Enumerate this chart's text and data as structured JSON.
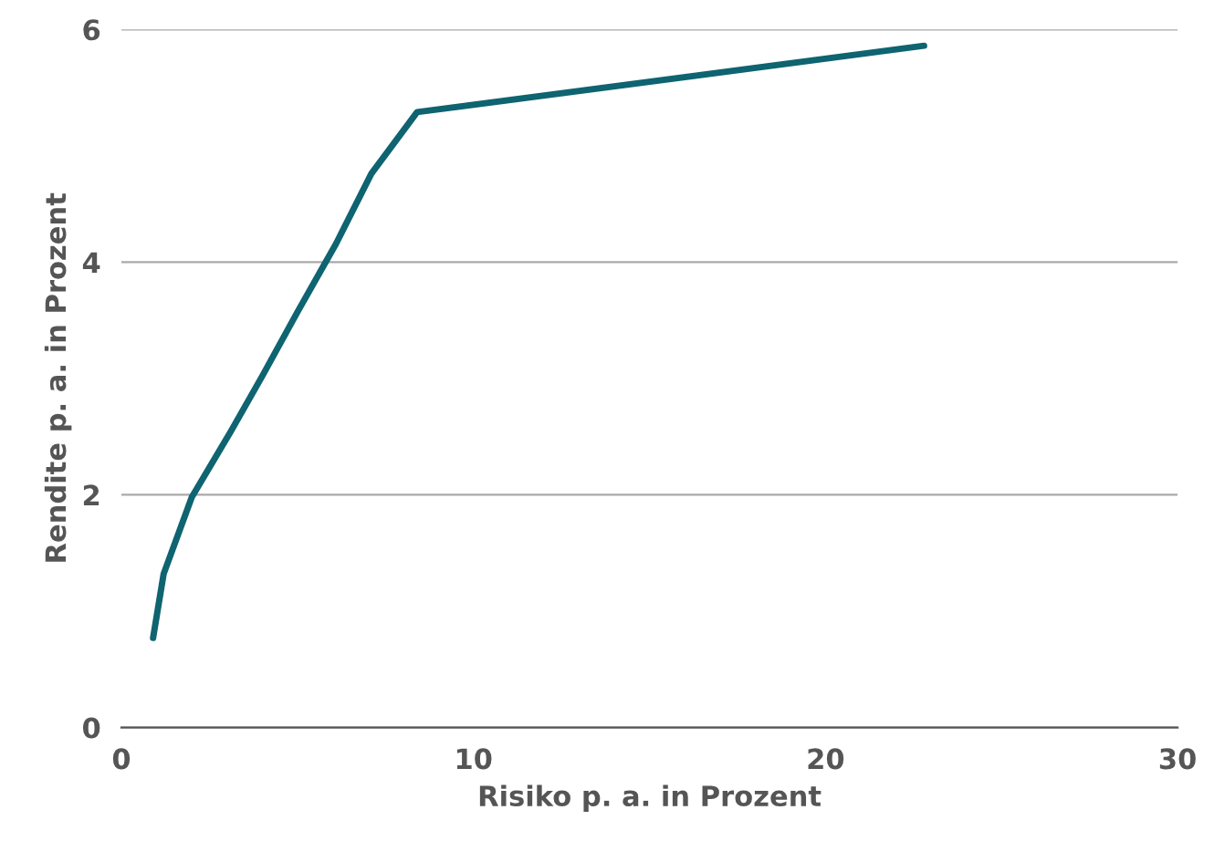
{
  "chart_data": {
    "type": "line",
    "xlabel": "Risiko p. a. in Prozent",
    "ylabel": "Rendite p. a. in Prozent",
    "x": [
      0.9,
      1.2,
      2.0,
      3.1,
      4.0,
      5.0,
      6.1,
      7.1,
      8.4,
      22.8
    ],
    "series": [
      {
        "color": "#0e6470",
        "values": [
          0.77,
          1.32,
          1.98,
          2.54,
          3.02,
          3.57,
          4.16,
          4.76,
          5.29,
          5.86
        ]
      }
    ],
    "xlim": [
      0,
      30
    ],
    "xticks": [
      0,
      10,
      20,
      30
    ],
    "ylim": [
      0,
      6
    ],
    "yticks": [
      0,
      2,
      4,
      6
    ],
    "grid": "y",
    "marker": "none",
    "line_style": "solid"
  }
}
